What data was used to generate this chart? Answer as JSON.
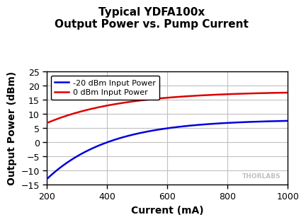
{
  "title_line1": "Typical YDFA100x",
  "title_line2": "Output Power vs. Pump Current",
  "xlabel": "Current (mA)",
  "ylabel": "Output Power (dBm)",
  "xlim": [
    200,
    1000
  ],
  "ylim": [
    -15,
    25
  ],
  "yticks": [
    -15,
    -10,
    -5,
    0,
    5,
    10,
    15,
    20,
    25
  ],
  "xticks": [
    200,
    400,
    600,
    800,
    1000
  ],
  "line_blue_label": "-20 dBm Input Power",
  "line_red_label": "0 dBm Input Power",
  "line_blue_color": "#0000dd",
  "line_red_color": "#dd0000",
  "background_color": "#ffffff",
  "grid_color": "#c0c0c0",
  "watermark": "THORLABS",
  "watermark_color": "#c0c0c0",
  "title_fontsize": 11,
  "label_fontsize": 10,
  "tick_fontsize": 9,
  "legend_fontsize": 8
}
